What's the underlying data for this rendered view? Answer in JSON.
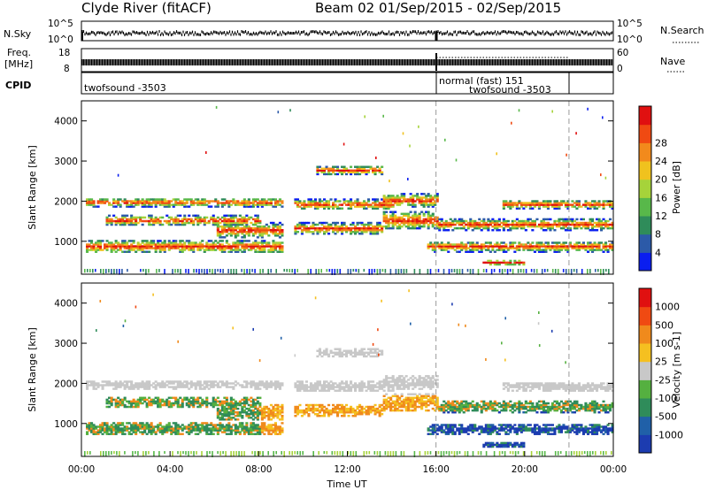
{
  "header": {
    "title": "Clyde River (fitACF)",
    "beam_date": "Beam 02  01/Sep/2015 - 02/Sep/2015"
  },
  "strip_labels": {
    "nsky": "N.Sky",
    "nsearch": "N.Search",
    "freq_top": "Freq.",
    "freq_unit": "[MHz]",
    "nave": "Nave",
    "cpid": "CPID",
    "nsky_top": "10^5",
    "nsky_bottom": "10^0",
    "freq_left_top": "18",
    "freq_left_bottom": "8",
    "nave_right_top": "60",
    "nave_right_bottom": "0"
  },
  "cpid_segments": [
    {
      "start_h": 0,
      "end_h": 16,
      "label": "twofsound -3503"
    },
    {
      "start_h": 16,
      "end_h": 22,
      "label": "normal (fast) 151"
    },
    {
      "start_h": 16,
      "end_h": 22,
      "label": "twofsound -3503"
    }
  ],
  "chart_data": [
    {
      "type": "heatmap",
      "name": "Power",
      "xlabel": "",
      "ylabel": "Slant Range [km]",
      "xlim": [
        0,
        24
      ],
      "ylim": [
        180,
        4500
      ],
      "yticks": [
        "1000",
        "2000",
        "3000",
        "4000"
      ],
      "colorbar_label": "Power [dB]",
      "colorbar_ticks": [
        "4",
        "8",
        "12",
        "16",
        "20",
        "24",
        "28"
      ],
      "colorbar_colors": [
        "#0a1ef0",
        "#2c5aa8",
        "#2f8c5a",
        "#58b84a",
        "#a6d33a",
        "#f0c21e",
        "#f28a1c",
        "#f04a12",
        "#e01010"
      ],
      "vertical_markers_h": [
        16,
        22
      ]
    },
    {
      "type": "heatmap",
      "name": "Velocity",
      "xlabel": "Time UT",
      "ylabel": "Slant Range [km]",
      "xlim": [
        0,
        24
      ],
      "ylim": [
        180,
        4500
      ],
      "yticks": [
        "1000",
        "2000",
        "3000",
        "4000"
      ],
      "xticks": [
        "00:00",
        "04:00",
        "08:00",
        "12:00",
        "16:00",
        "20:00",
        "00:00"
      ],
      "colorbar_label": "Velocity [m s-1]",
      "colorbar_ticks": [
        "1000",
        "500",
        "100",
        "25",
        "-25",
        "-100",
        "-500",
        "-1000"
      ],
      "colorbar_colors": [
        "#1c3cb0",
        "#2060a8",
        "#2f8c5a",
        "#55b040",
        "#c8c8c8",
        "#f5c020",
        "#f08a1c",
        "#f04a12",
        "#e01010"
      ],
      "vertical_markers_h": [
        16,
        22
      ]
    }
  ]
}
